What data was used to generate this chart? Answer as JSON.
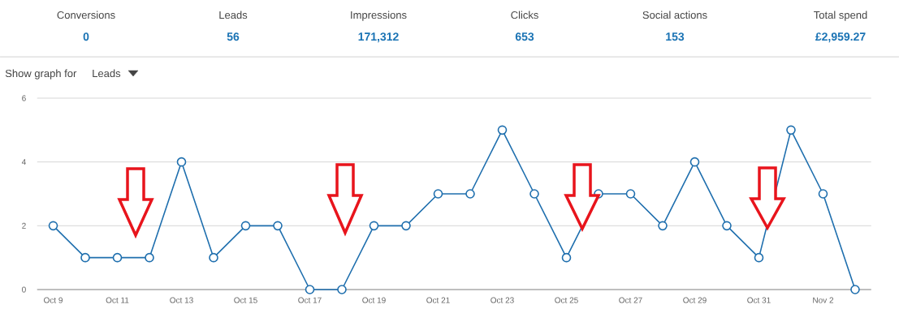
{
  "chart_data": {
    "type": "line",
    "categories": [
      "Oct 9",
      null,
      "Oct 11",
      null,
      "Oct 13",
      null,
      "Oct 15",
      null,
      "Oct 17",
      null,
      "Oct 19",
      null,
      "Oct 21",
      null,
      "Oct 23",
      null,
      "Oct 25",
      null,
      "Oct 27",
      null,
      "Oct 29",
      null,
      "Oct 31",
      null,
      "Nov 2",
      null
    ],
    "series": [
      {
        "color": "#1f6fae",
        "values": [
          2,
          1,
          1,
          1,
          4,
          1,
          2,
          2,
          0,
          0,
          2,
          2,
          3,
          3,
          5,
          3,
          1,
          3,
          3,
          2,
          4,
          2,
          1,
          5,
          3,
          0
        ]
      }
    ],
    "ylim": [
      0,
      6
    ],
    "yticks": [
      0,
      2,
      4,
      6
    ],
    "grid": "y",
    "marker": "circle",
    "line_style": "solid",
    "annotations": [
      "Conversions",
      "0",
      "Leads",
      "56",
      "Impressions",
      "171,312",
      "Clicks",
      "653",
      "Social actions",
      "153",
      "Total spend",
      "£2,959.27",
      "Show graph for",
      "Leads"
    ]
  }
}
